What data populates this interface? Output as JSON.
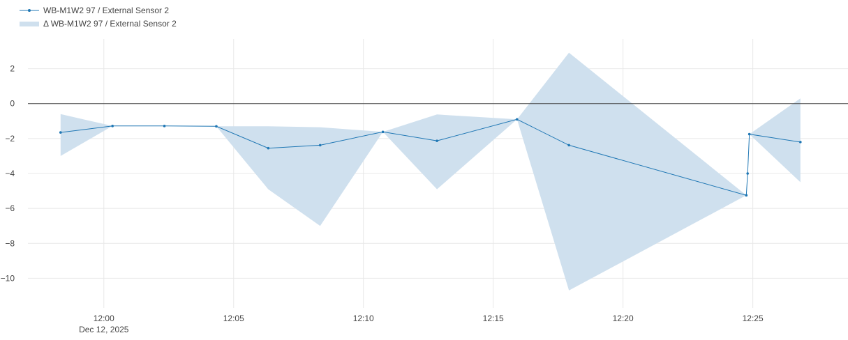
{
  "chart_data": {
    "type": "line",
    "x_format": "HH:MM",
    "date_label": "Dec 12, 2025",
    "xlim": [
      "11:56:00",
      "12:28:40"
    ],
    "ylim": [
      -11.7,
      3.7
    ],
    "x_ticks": [
      "12:00",
      "12:05",
      "12:10",
      "12:15",
      "12:20",
      "12:25"
    ],
    "y_ticks": [
      2,
      0,
      -2,
      -4,
      -6,
      -8,
      -10
    ],
    "y_tick_labels": [
      "2",
      "0",
      "−2",
      "−4",
      "−6",
      "−8",
      "−10"
    ],
    "grid": true,
    "zero_line": true,
    "legend_position": "top-left",
    "colors": {
      "line": "#1f77b4",
      "band": "#cfe0ee",
      "zero": "#444444",
      "grid": "#e8e8e8"
    },
    "series": [
      {
        "name": "WB-M1W2 97 / External Sensor 2",
        "kind": "line",
        "x": [
          "11:58:20",
          "12:00:20",
          "12:02:20",
          "12:04:20",
          "12:06:20",
          "12:08:20",
          "12:10:45",
          "12:12:50",
          "12:15:55",
          "12:17:55",
          "12:24:45",
          "12:24:48",
          "12:24:52",
          "12:26:50"
        ],
        "y": [
          -1.65,
          -1.28,
          -1.28,
          -1.3,
          -2.55,
          -2.38,
          -1.62,
          -2.13,
          -0.9,
          -2.38,
          -5.25,
          -4.0,
          -1.75,
          -2.2
        ]
      },
      {
        "name": "Δ WB-M1W2 97 / External Sensor 2",
        "kind": "band",
        "x": [
          "11:58:20",
          "12:00:20",
          "12:02:20",
          "12:04:20",
          "12:06:20",
          "12:08:20",
          "12:10:45",
          "12:12:50",
          "12:15:55",
          "12:17:55",
          "12:24:45",
          "12:24:48",
          "12:24:52",
          "12:26:50"
        ],
        "upper": [
          -0.6,
          -1.28,
          -1.28,
          -1.3,
          -1.3,
          -1.35,
          -1.62,
          -0.62,
          -0.9,
          2.92,
          -5.25,
          -4.0,
          -1.75,
          0.3
        ],
        "lower": [
          -3.0,
          -1.28,
          -1.28,
          -1.3,
          -4.9,
          -7.0,
          -1.62,
          -4.9,
          -0.9,
          -10.7,
          -5.25,
          -4.0,
          -1.75,
          -4.5
        ]
      }
    ]
  }
}
